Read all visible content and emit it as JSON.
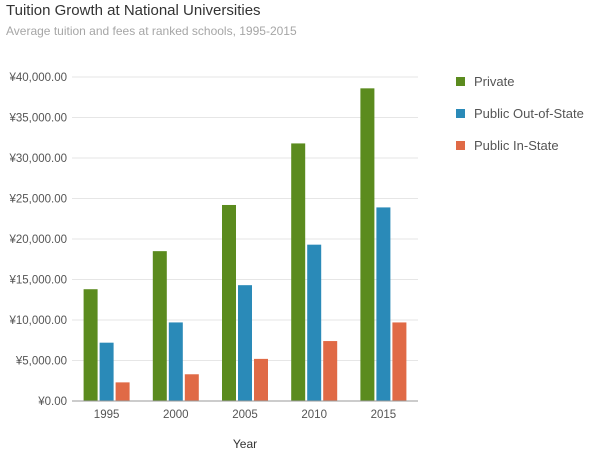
{
  "chart_data": {
    "type": "bar",
    "title": "Tuition Growth at National Universities",
    "subtitle": "Average tuition and fees at ranked schools, 1995-2015",
    "xlabel": "Year",
    "ylabel": "",
    "categories": [
      "1995",
      "2000",
      "2005",
      "2010",
      "2015"
    ],
    "series": [
      {
        "name": "Private",
        "color": "#5b8b1e",
        "values": [
          13800,
          18500,
          24200,
          31800,
          38600
        ]
      },
      {
        "name": "Public Out-of-State",
        "color": "#2a8ab8",
        "values": [
          7200,
          9700,
          14300,
          19300,
          23900
        ]
      },
      {
        "name": "Public In-State",
        "color": "#e06a46",
        "values": [
          2300,
          3300,
          5200,
          7400,
          9700
        ]
      }
    ],
    "ylim": [
      0,
      40000
    ],
    "yticks": [
      0,
      5000,
      10000,
      15000,
      20000,
      25000,
      30000,
      35000,
      40000
    ],
    "ytick_labels": [
      "¥0.00",
      "¥5,000.00",
      "¥10,000.00",
      "¥15,000.00",
      "¥20,000.00",
      "¥25,000.00",
      "¥30,000.00",
      "¥35,000.00",
      "¥40,000.00"
    ],
    "grid": true,
    "legend_position": "right"
  }
}
